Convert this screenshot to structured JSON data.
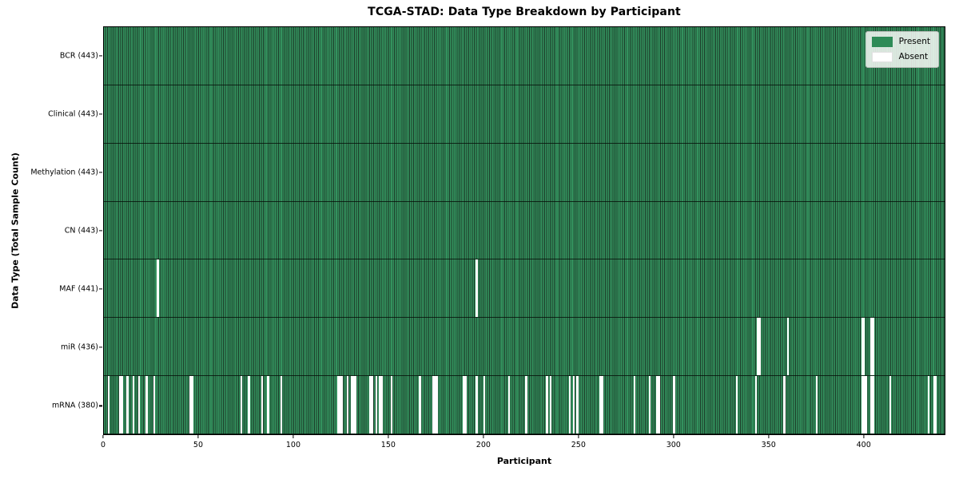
{
  "title": "TCGA-STAD: Data Type Breakdown by Participant",
  "axes": {
    "xlabel": "Participant",
    "ylabel": "Data Type (Total Sample Count)",
    "x_ticks": [
      0,
      50,
      100,
      150,
      200,
      250,
      300,
      350,
      400
    ]
  },
  "legend": {
    "present_label": "Present",
    "absent_label": "Absent"
  },
  "colors": {
    "present": "#2e8b57",
    "present_stripe_dark": "#1c3a28",
    "absent": "#ffffff",
    "row_divider": "#0a140d",
    "plot_border": "#000000",
    "legend_bg": "#eef1ec",
    "legend_border": "#b8bdb8"
  },
  "chart_data": {
    "type": "heatmap",
    "title": "TCGA-STAD: Data Type Breakdown by Participant",
    "xlabel": "Participant",
    "ylabel": "Data Type (Total Sample Count)",
    "xlim": [
      0,
      443
    ],
    "x_ticks": [
      0,
      50,
      100,
      150,
      200,
      250,
      300,
      350,
      400
    ],
    "total_participants": 443,
    "grid": false,
    "legend_position": "upper right",
    "legend": [
      {
        "label": "Present",
        "color": "#2e8b57"
      },
      {
        "label": "Absent",
        "color": "#ffffff"
      }
    ],
    "rows": [
      {
        "label": "BCR (443)",
        "data_type": "BCR",
        "present_count": 443,
        "absent_participants": []
      },
      {
        "label": "Clinical (443)",
        "data_type": "Clinical",
        "present_count": 443,
        "absent_participants": []
      },
      {
        "label": "Methylation (443)",
        "data_type": "Methylation",
        "present_count": 443,
        "absent_participants": []
      },
      {
        "label": "CN (443)",
        "data_type": "CN",
        "present_count": 443,
        "absent_participants": []
      },
      {
        "label": "MAF (441)",
        "data_type": "MAF",
        "present_count": 441,
        "absent_participants": [
          28,
          196
        ]
      },
      {
        "label": "miR (436)",
        "data_type": "miR",
        "present_count": 436,
        "absent_participants": [
          344,
          345,
          360,
          399,
          400,
          404,
          405
        ]
      },
      {
        "label": "mRNA (380)",
        "data_type": "mRNA",
        "present_count": 380,
        "absent_participants": [
          2,
          8,
          9,
          12,
          15,
          18,
          22,
          26,
          45,
          46,
          72,
          76,
          83,
          86,
          93,
          123,
          124,
          125,
          128,
          130,
          131,
          132,
          140,
          141,
          143,
          145,
          146,
          151,
          166,
          173,
          174,
          175,
          189,
          190,
          196,
          200,
          213,
          222,
          233,
          235,
          245,
          247,
          249,
          261,
          262,
          279,
          287,
          291,
          292,
          300,
          333,
          343,
          358,
          375,
          399,
          400,
          401,
          404,
          405,
          414,
          434,
          437,
          438
        ]
      }
    ]
  }
}
